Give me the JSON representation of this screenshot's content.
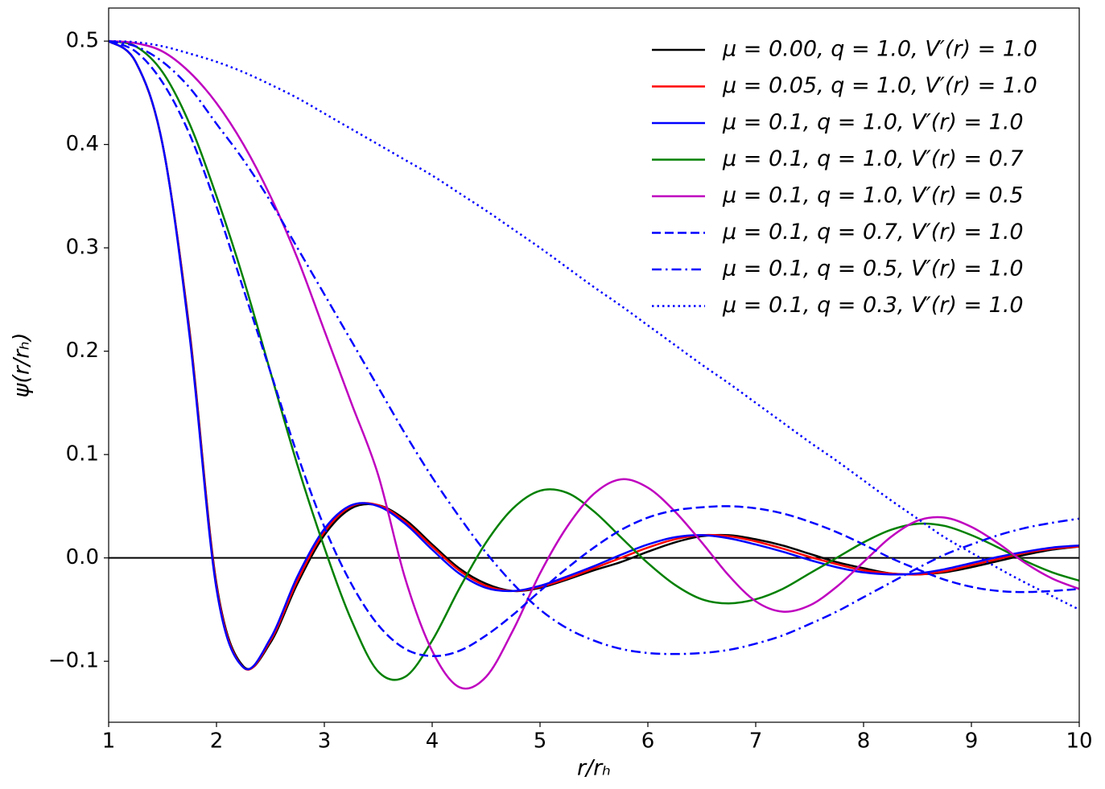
{
  "chart_data": {
    "type": "line",
    "xlabel": "r/rₕ",
    "ylabel": "ψ(r/rₕ)",
    "x": [
      1,
      1.25,
      1.5,
      1.75,
      2,
      2.25,
      2.5,
      2.75,
      3,
      3.25,
      3.5,
      3.75,
      4,
      4.25,
      4.5,
      4.75,
      5,
      5.25,
      5.5,
      5.75,
      6,
      6.25,
      6.5,
      6.75,
      7,
      7.25,
      7.5,
      7.75,
      8,
      8.25,
      8.5,
      8.75,
      9,
      9.25,
      9.5,
      9.75,
      10
    ],
    "xlim": [
      1,
      10
    ],
    "xticks": [
      1,
      2,
      3,
      4,
      5,
      6,
      7,
      8,
      9,
      10
    ],
    "ylim": [
      -0.159,
      0.532
    ],
    "yticks": [
      {
        "value": -0.1,
        "label": "−0.1"
      },
      {
        "value": 0,
        "label": "0.0"
      },
      0.1,
      0.2,
      0.3,
      0.4,
      0.5
    ],
    "hline": 0,
    "legend": "upper right",
    "series": [
      {
        "name": "μ = 0.00, q = 1.0, V′(r) = 1.0",
        "color": "#000000",
        "linestyle": "solid",
        "values": [
          0.5,
          0.48,
          0.4,
          0.22,
          -0.025,
          -0.105,
          -0.082,
          -0.025,
          0.022,
          0.048,
          0.051,
          0.037,
          0.013,
          -0.01,
          -0.025,
          -0.032,
          -0.029,
          -0.021,
          -0.012,
          -0.004,
          0.006,
          0.015,
          0.021,
          0.022,
          0.018,
          0.012,
          0.004,
          -0.004,
          -0.01,
          -0.015,
          -0.016,
          -0.014,
          -0.009,
          -0.003,
          0.003,
          0.008,
          0.011
        ]
      },
      {
        "name": "μ = 0.05, q = 1.0, V′(r) = 1.0",
        "color": "#ff0000",
        "linestyle": "solid",
        "values": [
          0.5,
          0.48,
          0.4,
          0.218,
          -0.027,
          -0.106,
          -0.08,
          -0.022,
          0.025,
          0.05,
          0.051,
          0.035,
          0.011,
          -0.012,
          -0.027,
          -0.032,
          -0.028,
          -0.02,
          -0.01,
          0,
          0.01,
          0.018,
          0.022,
          0.021,
          0.016,
          0.009,
          0.001,
          -0.006,
          -0.012,
          -0.015,
          -0.016,
          -0.013,
          -0.007,
          -0.001,
          0.005,
          0.009,
          0.011
        ]
      },
      {
        "name": "μ = 0.1, q = 1.0, V′(r) = 1.0",
        "color": "#0000ff",
        "linestyle": "solid",
        "values": [
          0.5,
          0.48,
          0.4,
          0.215,
          -0.03,
          -0.106,
          -0.078,
          -0.018,
          0.028,
          0.051,
          0.05,
          0.033,
          0.008,
          -0.015,
          -0.029,
          -0.032,
          -0.027,
          -0.018,
          -0.008,
          0.003,
          0.013,
          0.02,
          0.022,
          0.019,
          0.013,
          0.006,
          -0.002,
          -0.009,
          -0.014,
          -0.016,
          -0.015,
          -0.011,
          -0.005,
          0.001,
          0.006,
          0.01,
          0.012
        ]
      },
      {
        "name": "μ = 0.1, q = 1.0, V′(r) = 0.7",
        "color": "#008000",
        "linestyle": "solid",
        "values": [
          0.5,
          0.495,
          0.47,
          0.42,
          0.35,
          0.27,
          0.18,
          0.09,
          0.01,
          -0.06,
          -0.11,
          -0.115,
          -0.08,
          -0.03,
          0.015,
          0.048,
          0.065,
          0.063,
          0.045,
          0.02,
          -0.005,
          -0.026,
          -0.04,
          -0.044,
          -0.04,
          -0.03,
          -0.015,
          0,
          0.015,
          0.027,
          0.033,
          0.031,
          0.022,
          0.01,
          -0.003,
          -0.014,
          -0.022
        ]
      },
      {
        "name": "μ = 0.1, q = 1.0, V′(r) = 0.5",
        "color": "#bf00bf",
        "linestyle": "solid",
        "values": [
          0.5,
          0.498,
          0.49,
          0.47,
          0.44,
          0.4,
          0.35,
          0.29,
          0.22,
          0.15,
          0.08,
          -0.02,
          -0.09,
          -0.125,
          -0.115,
          -0.07,
          -0.015,
          0.03,
          0.062,
          0.076,
          0.068,
          0.045,
          0.015,
          -0.017,
          -0.042,
          -0.052,
          -0.046,
          -0.028,
          -0.004,
          0.02,
          0.036,
          0.039,
          0.03,
          0.014,
          -0.005,
          -0.02,
          -0.03
        ]
      },
      {
        "name": "μ = 0.1, q = 0.7, V′(r) = 1.0",
        "color": "#0000ff",
        "linestyle": "dashed",
        "values": [
          0.5,
          0.49,
          0.46,
          0.41,
          0.34,
          0.26,
          0.18,
          0.1,
          0.03,
          -0.025,
          -0.065,
          -0.088,
          -0.095,
          -0.09,
          -0.075,
          -0.055,
          -0.032,
          -0.01,
          0.01,
          0.027,
          0.039,
          0.046,
          0.049,
          0.05,
          0.048,
          0.043,
          0.035,
          0.025,
          0.013,
          0,
          -0.011,
          -0.021,
          -0.028,
          -0.032,
          -0.033,
          -0.032,
          -0.03
        ]
      },
      {
        "name": "μ = 0.1, q = 0.5, V′(r) = 1.0",
        "color": "#0000ff",
        "linestyle": "dashdot",
        "values": [
          0.5,
          0.495,
          0.48,
          0.455,
          0.42,
          0.385,
          0.345,
          0.3,
          0.255,
          0.21,
          0.165,
          0.12,
          0.078,
          0.04,
          0.005,
          -0.025,
          -0.05,
          -0.068,
          -0.08,
          -0.088,
          -0.092,
          -0.093,
          -0.092,
          -0.089,
          -0.083,
          -0.075,
          -0.064,
          -0.052,
          -0.038,
          -0.024,
          -0.01,
          0.003,
          0.013,
          0.022,
          0.029,
          0.034,
          0.038
        ]
      },
      {
        "name": "μ = 0.1, q = 0.3, V′(r) = 1.0",
        "color": "#0000ff",
        "linestyle": "dotted",
        "values": [
          0.5,
          0.499,
          0.495,
          0.488,
          0.48,
          0.47,
          0.458,
          0.445,
          0.43,
          0.415,
          0.4,
          0.385,
          0.37,
          0.353,
          0.336,
          0.318,
          0.3,
          0.281,
          0.262,
          0.244,
          0.225,
          0.206,
          0.187,
          0.169,
          0.15,
          0.131,
          0.112,
          0.094,
          0.075,
          0.056,
          0.038,
          0.02,
          0.005,
          -0.01,
          -0.024,
          -0.037,
          -0.05
        ]
      }
    ]
  }
}
